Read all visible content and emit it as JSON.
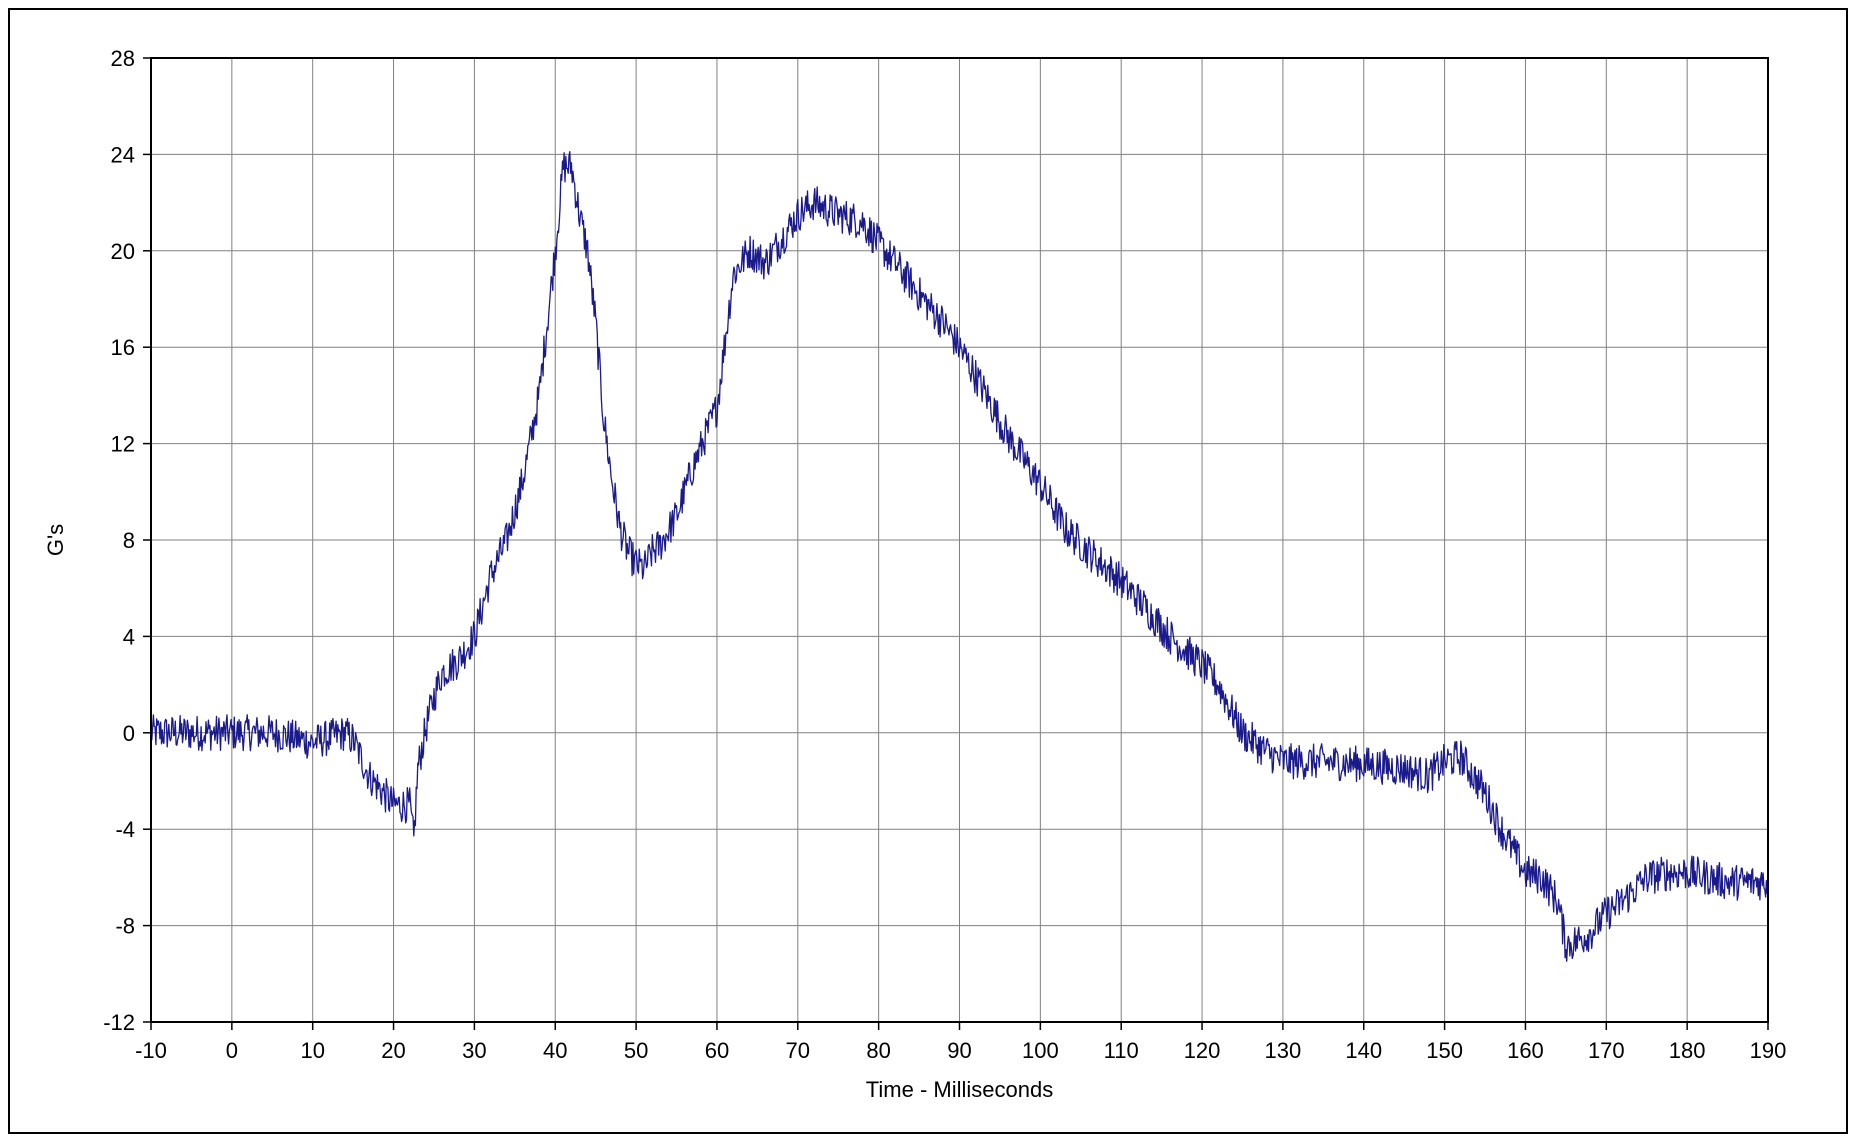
{
  "chart_data": {
    "type": "line",
    "title": "",
    "xlabel": "Time - Milliseconds",
    "ylabel": "G's",
    "xlim": [
      -10,
      190
    ],
    "ylim": [
      -12,
      28
    ],
    "xticks": [
      -10,
      0,
      10,
      20,
      30,
      40,
      50,
      60,
      70,
      80,
      90,
      100,
      110,
      120,
      130,
      140,
      150,
      160,
      170,
      180,
      190
    ],
    "yticks": [
      -12,
      -8,
      -4,
      0,
      4,
      8,
      12,
      16,
      20,
      24,
      28
    ],
    "xtick_labels": [
      "-10",
      "0",
      "10",
      "20",
      "30",
      "40",
      "50",
      "60",
      "70",
      "80",
      "90",
      "100",
      "110",
      "120",
      "130",
      "140",
      "150",
      "160",
      "170",
      "180",
      "190"
    ],
    "ytick_labels": [
      "-12",
      "-8",
      "-4",
      "0",
      "4",
      "8",
      "12",
      "16",
      "20",
      "24",
      "28"
    ],
    "grid": true,
    "legend": "none",
    "line_color": "#1a1a8c",
    "grid_color": "#808080",
    "series": [
      {
        "x": [
          -10,
          -5,
          0,
          5,
          10,
          14,
          15,
          17,
          20,
          22,
          22.5,
          23,
          24,
          25,
          26,
          28,
          30,
          32,
          34,
          36,
          38,
          40,
          41,
          42,
          43,
          44,
          45,
          46,
          47,
          48,
          49,
          50,
          51,
          52,
          53,
          55,
          57,
          60,
          62,
          64,
          66,
          68,
          70,
          72,
          75,
          78,
          80,
          82,
          85,
          88,
          90,
          93,
          96,
          100,
          103,
          106,
          110,
          113,
          116,
          120,
          122,
          125,
          128,
          130,
          135,
          140,
          145,
          148,
          150,
          152,
          155,
          157,
          160,
          162,
          164,
          165,
          166,
          168,
          170,
          172,
          175,
          178,
          180,
          185,
          190
        ],
        "y": [
          0,
          0,
          0,
          0,
          -0.4,
          0,
          -0.3,
          -1.8,
          -3,
          -3,
          -4.5,
          -1.5,
          0.2,
          1.5,
          2.5,
          3,
          4,
          6.5,
          8,
          10.5,
          14,
          20,
          23.5,
          23.5,
          21.5,
          20,
          17,
          13,
          10.5,
          8.5,
          7.5,
          7,
          6.8,
          7.5,
          7.8,
          9,
          11,
          13.5,
          19,
          20,
          19.5,
          20.5,
          21.5,
          22,
          21.5,
          21.2,
          20.3,
          19.5,
          18.2,
          17,
          16,
          14.2,
          12.3,
          10.3,
          8.5,
          7.5,
          6.3,
          5.2,
          4,
          2.8,
          2,
          0,
          -0.8,
          -1.2,
          -1.2,
          -1.3,
          -1.5,
          -1.8,
          -1.2,
          -1,
          -2.5,
          -4,
          -5.8,
          -6,
          -7,
          -8.8,
          -8.7,
          -8.3,
          -7.5,
          -7,
          -6,
          -5.8,
          -5.8,
          -6.2,
          -6.2
        ]
      }
    ]
  }
}
